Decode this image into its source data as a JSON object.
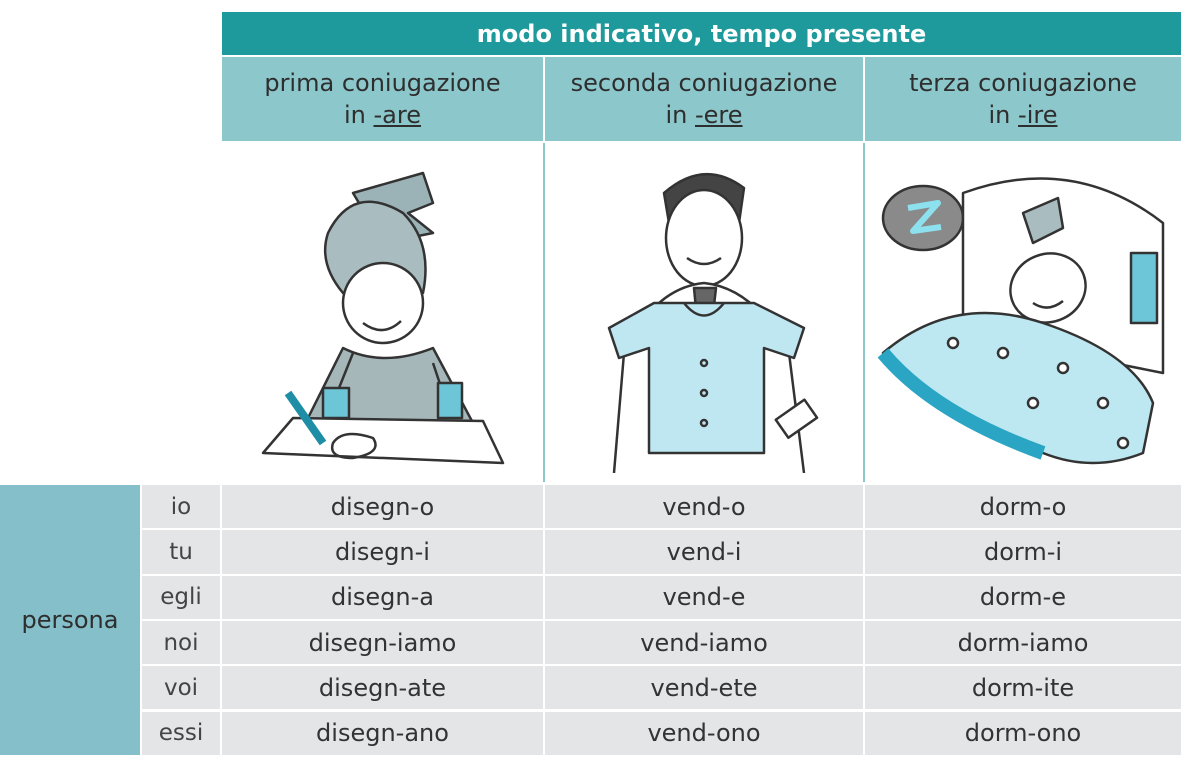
{
  "header": {
    "title": "modo indicativo, tempo presente"
  },
  "columns": [
    {
      "name": "prima coniugazione",
      "prefix": "in",
      "ending": "-are"
    },
    {
      "name": "seconda coniugazione",
      "prefix": "in",
      "ending": "-ere"
    },
    {
      "name": "terza coniugazione",
      "prefix": "in",
      "ending": "-ire"
    }
  ],
  "row_group": "persona",
  "rows": [
    {
      "pronoun": "io",
      "forms": [
        "disegn-o",
        "vend-o",
        "dorm-o"
      ]
    },
    {
      "pronoun": "tu",
      "forms": [
        "disegn-i",
        "vend-i",
        "dorm-i"
      ]
    },
    {
      "pronoun": "egli",
      "forms": [
        "disegn-a",
        "vend-e",
        "dorm-e"
      ]
    },
    {
      "pronoun": "noi",
      "forms": [
        "disegn-iamo",
        "vend-iamo",
        "dorm-iamo"
      ]
    },
    {
      "pronoun": "voi",
      "forms": [
        "disegn-ate",
        "vend-ete",
        "dorm-ite"
      ]
    },
    {
      "pronoun": "essi",
      "forms": [
        "disegn-ano",
        "vend-ono",
        "dorm-ono"
      ]
    }
  ]
}
